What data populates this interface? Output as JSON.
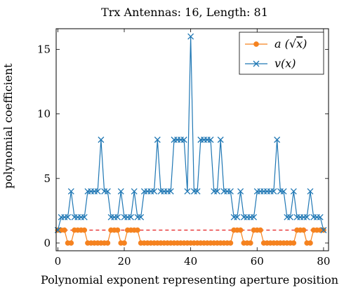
{
  "chart_data": {
    "type": "line",
    "title": "Trx Antennas: 16, Length: 81",
    "xlabel": "Polynomial exponent representing aperture position",
    "ylabel": "polynomial coefficient",
    "xlim": [
      -0.5,
      81.5
    ],
    "ylim": [
      -0.6,
      16.6
    ],
    "xticks": [
      0,
      20,
      40,
      60,
      80
    ],
    "yticks": [
      0,
      5,
      10,
      15
    ],
    "grid": false,
    "legend_position": "top-right",
    "reference_line": {
      "y": 1,
      "color": "#e41a1c",
      "style": "dashed"
    },
    "x": [
      0,
      1,
      2,
      3,
      4,
      5,
      6,
      7,
      8,
      9,
      10,
      11,
      12,
      13,
      14,
      15,
      16,
      17,
      18,
      19,
      20,
      21,
      22,
      23,
      24,
      25,
      26,
      27,
      28,
      29,
      30,
      31,
      32,
      33,
      34,
      35,
      36,
      37,
      38,
      39,
      40,
      41,
      42,
      43,
      44,
      45,
      46,
      47,
      48,
      49,
      50,
      51,
      52,
      53,
      54,
      55,
      56,
      57,
      58,
      59,
      60,
      61,
      62,
      63,
      64,
      65,
      66,
      67,
      68,
      69,
      70,
      71,
      72,
      73,
      74,
      75,
      76,
      77,
      78,
      79,
      80
    ],
    "series": [
      {
        "name": "a(√x)",
        "label_tex_base": "a",
        "label_tex_arg": "x",
        "color": "#f5821f",
        "marker": "circle",
        "values": [
          1,
          1,
          1,
          0,
          0,
          1,
          1,
          1,
          1,
          0,
          0,
          0,
          0,
          0,
          0,
          0,
          1,
          1,
          1,
          0,
          0,
          1,
          1,
          1,
          1,
          0,
          0,
          0,
          0,
          0,
          0,
          0,
          0,
          0,
          0,
          0,
          0,
          0,
          0,
          0,
          0,
          0,
          0,
          0,
          0,
          0,
          0,
          0,
          0,
          0,
          0,
          0,
          0,
          1,
          1,
          1,
          0,
          0,
          0,
          1,
          1,
          1,
          0,
          0,
          0,
          0,
          0,
          0,
          0,
          0,
          0,
          0,
          1,
          1,
          1,
          0,
          0,
          1,
          1,
          1,
          1
        ]
      },
      {
        "name": "v(x)",
        "label_tex_base": "v",
        "label_tex_arg": "x",
        "color": "#1f77b4",
        "marker": "x",
        "values": [
          1,
          2,
          2,
          2,
          4,
          2,
          2,
          2,
          2,
          4,
          4,
          4,
          4,
          8,
          4,
          4,
          2,
          2,
          2,
          4,
          2,
          2,
          2,
          4,
          2,
          2,
          4,
          4,
          4,
          4,
          8,
          4,
          4,
          4,
          4,
          8,
          8,
          8,
          8,
          4,
          16,
          4,
          4,
          8,
          8,
          8,
          8,
          4,
          4,
          8,
          4,
          4,
          4,
          2,
          2,
          4,
          2,
          2,
          2,
          2,
          4,
          4,
          4,
          4,
          4,
          4,
          8,
          4,
          4,
          2,
          2,
          4,
          2,
          2,
          2,
          2,
          4,
          2,
          2,
          2,
          1
        ]
      }
    ]
  }
}
